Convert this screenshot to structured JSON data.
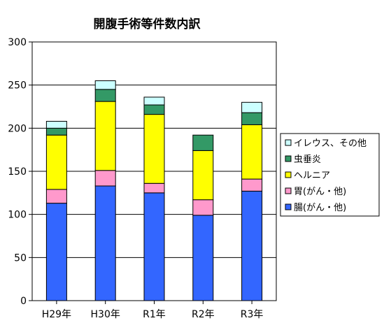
{
  "chart_data": {
    "type": "bar",
    "stacked": true,
    "title": "開腹手術等件数内訳",
    "xlabel": "",
    "ylabel": "",
    "categories": [
      "H29年",
      "H30年",
      "R1年",
      "R2年",
      "R3年"
    ],
    "ylim": [
      0,
      300
    ],
    "yticks": [
      0,
      50,
      100,
      150,
      200,
      250,
      300
    ],
    "grid": true,
    "legend_position": "right",
    "series": [
      {
        "name": "腸(がん・他)",
        "color": "#3366ff",
        "values": [
          113,
          133,
          125,
          99,
          127
        ]
      },
      {
        "name": "胃(がん・他)",
        "color": "#ff99cc",
        "values": [
          16,
          18,
          11,
          18,
          14
        ]
      },
      {
        "name": "ヘルニア",
        "color": "#ffff00",
        "values": [
          63,
          80,
          80,
          57,
          63
        ]
      },
      {
        "name": "虫垂炎",
        "color": "#339966",
        "values": [
          8,
          14,
          11,
          18,
          14
        ]
      },
      {
        "name": "イレウス、その他",
        "color": "#ccffff",
        "values": [
          8,
          10,
          9,
          0,
          12
        ]
      }
    ]
  }
}
